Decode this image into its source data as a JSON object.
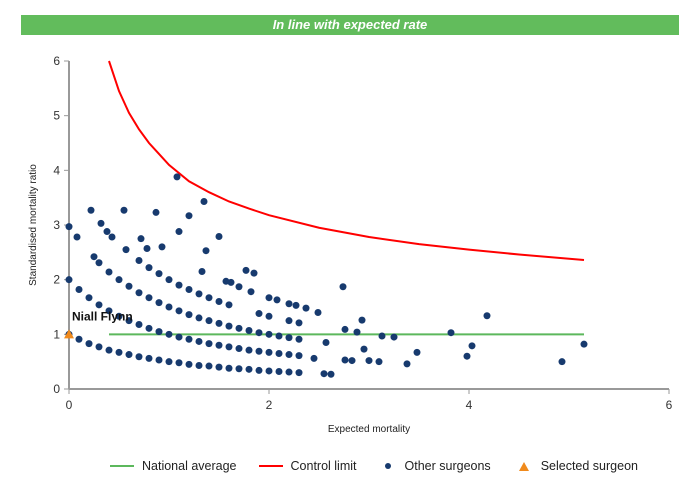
{
  "banner": {
    "text": "In line with expected rate",
    "color": "#62bc5c"
  },
  "chart_data": {
    "type": "scatter",
    "xlabel": "Expected mortality",
    "ylabel": "Standardised mortality ratio",
    "xlim": [
      0,
      6
    ],
    "ylim": [
      0,
      6
    ],
    "xticks": [
      0,
      2,
      4,
      6
    ],
    "yticks": [
      0,
      1,
      2,
      3,
      4,
      5,
      6
    ],
    "grid": false,
    "legend_position": "bottom",
    "national_average": {
      "name": "National average",
      "color": "#5cb85c",
      "y": 1,
      "x_range": [
        0.4,
        5.15
      ]
    },
    "control_limit": {
      "name": "Control limit",
      "color": "#ff0000",
      "x": [
        0.4,
        0.5,
        0.6,
        0.7,
        0.8,
        0.9,
        1.0,
        1.2,
        1.4,
        1.6,
        1.8,
        2.0,
        2.5,
        3.0,
        3.5,
        4.0,
        4.5,
        5.15
      ],
      "y": [
        6.0,
        5.45,
        5.05,
        4.75,
        4.5,
        4.3,
        4.1,
        3.8,
        3.6,
        3.43,
        3.3,
        3.18,
        2.95,
        2.78,
        2.65,
        2.55,
        2.46,
        2.36
      ]
    },
    "other_surgeons": {
      "name": "Other surgeons",
      "color": "#173a6e",
      "points": [
        [
          0,
          1.0
        ],
        [
          0.1,
          0.91
        ],
        [
          0.2,
          0.83
        ],
        [
          0.3,
          0.77
        ],
        [
          0.4,
          0.71
        ],
        [
          0.5,
          0.67
        ],
        [
          0.6,
          0.63
        ],
        [
          0.7,
          0.59
        ],
        [
          0.8,
          0.56
        ],
        [
          0.9,
          0.53
        ],
        [
          1.0,
          0.5
        ],
        [
          1.1,
          0.48
        ],
        [
          1.2,
          0.45
        ],
        [
          1.3,
          0.43
        ],
        [
          1.4,
          0.42
        ],
        [
          1.5,
          0.4
        ],
        [
          1.6,
          0.38
        ],
        [
          1.7,
          0.37
        ],
        [
          1.8,
          0.36
        ],
        [
          1.9,
          0.34
        ],
        [
          2.0,
          0.33
        ],
        [
          2.1,
          0.32
        ],
        [
          2.2,
          0.31
        ],
        [
          2.3,
          0.3
        ],
        [
          0,
          2.0
        ],
        [
          0.1,
          1.82
        ],
        [
          0.2,
          1.67
        ],
        [
          0.3,
          1.54
        ],
        [
          0.4,
          1.43
        ],
        [
          0.5,
          1.33
        ],
        [
          0.6,
          1.25
        ],
        [
          0.7,
          1.18
        ],
        [
          0.8,
          1.11
        ],
        [
          0.9,
          1.05
        ],
        [
          1.0,
          1.0
        ],
        [
          1.1,
          0.95
        ],
        [
          1.2,
          0.91
        ],
        [
          1.3,
          0.87
        ],
        [
          1.4,
          0.83
        ],
        [
          1.5,
          0.8
        ],
        [
          1.6,
          0.77
        ],
        [
          1.7,
          0.74
        ],
        [
          1.8,
          0.71
        ],
        [
          1.9,
          0.69
        ],
        [
          2.0,
          0.67
        ],
        [
          2.1,
          0.65
        ],
        [
          2.2,
          0.63
        ],
        [
          2.3,
          0.61
        ],
        [
          0.25,
          2.42
        ],
        [
          0.3,
          2.31
        ],
        [
          0.4,
          2.14
        ],
        [
          0.5,
          2.0
        ],
        [
          0.6,
          1.88
        ],
        [
          0.7,
          1.76
        ],
        [
          0.8,
          1.67
        ],
        [
          0.9,
          1.58
        ],
        [
          1.0,
          1.5
        ],
        [
          1.1,
          1.43
        ],
        [
          1.2,
          1.36
        ],
        [
          1.3,
          1.3
        ],
        [
          1.4,
          1.25
        ],
        [
          1.5,
          1.2
        ],
        [
          1.6,
          1.15
        ],
        [
          1.7,
          1.11
        ],
        [
          1.8,
          1.07
        ],
        [
          1.9,
          1.03
        ],
        [
          2.0,
          1.0
        ],
        [
          2.1,
          0.97
        ],
        [
          2.2,
          0.94
        ],
        [
          2.3,
          0.91
        ],
        [
          0.7,
          2.35
        ],
        [
          0.8,
          2.22
        ],
        [
          0.9,
          2.11
        ],
        [
          1.0,
          2.0
        ],
        [
          1.1,
          1.9
        ],
        [
          1.2,
          1.82
        ],
        [
          1.3,
          1.74
        ],
        [
          1.4,
          1.67
        ],
        [
          1.5,
          1.6
        ],
        [
          1.6,
          1.54
        ],
        [
          1.9,
          1.38
        ],
        [
          2.0,
          1.33
        ],
        [
          2.2,
          1.25
        ],
        [
          2.3,
          1.21
        ],
        [
          0,
          2.97
        ],
        [
          0.08,
          2.78
        ],
        [
          0.22,
          3.27
        ],
        [
          0.32,
          3.03
        ],
        [
          0.38,
          2.88
        ],
        [
          0.43,
          2.78
        ],
        [
          0.55,
          3.27
        ],
        [
          0.57,
          2.55
        ],
        [
          0.72,
          2.75
        ],
        [
          0.78,
          2.57
        ],
        [
          0.87,
          3.23
        ],
        [
          0.93,
          2.6
        ],
        [
          1.08,
          3.88
        ],
        [
          1.1,
          2.88
        ],
        [
          1.2,
          3.17
        ],
        [
          1.33,
          2.15
        ],
        [
          1.35,
          3.43
        ],
        [
          1.37,
          2.53
        ],
        [
          1.5,
          2.79
        ],
        [
          1.57,
          1.97
        ],
        [
          1.62,
          1.95
        ],
        [
          1.7,
          1.87
        ],
        [
          1.77,
          2.17
        ],
        [
          1.82,
          1.78
        ],
        [
          1.85,
          2.12
        ],
        [
          2.0,
          1.67
        ],
        [
          2.08,
          1.63
        ],
        [
          2.2,
          1.56
        ],
        [
          2.27,
          1.53
        ],
        [
          2.37,
          1.48
        ],
        [
          2.49,
          1.4
        ],
        [
          2.74,
          1.87
        ],
        [
          2.76,
          1.09
        ],
        [
          2.88,
          1.04
        ],
        [
          2.93,
          1.26
        ],
        [
          3.13,
          0.97
        ],
        [
          3.25,
          0.95
        ],
        [
          3.82,
          1.03
        ],
        [
          4.18,
          1.34
        ],
        [
          2.57,
          0.85
        ],
        [
          2.45,
          0.56
        ],
        [
          2.55,
          0.28
        ],
        [
          2.62,
          0.27
        ],
        [
          2.76,
          0.53
        ],
        [
          2.83,
          0.52
        ],
        [
          3.0,
          0.52
        ],
        [
          3.1,
          0.5
        ],
        [
          2.95,
          0.73
        ],
        [
          3.38,
          0.46
        ],
        [
          3.48,
          0.67
        ],
        [
          3.98,
          0.6
        ],
        [
          4.03,
          0.79
        ],
        [
          4.93,
          0.5
        ],
        [
          5.15,
          0.82
        ]
      ]
    },
    "selected_surgeon": {
      "name": "Selected surgeon",
      "label": "Niall Flynn",
      "color": "#f08a1c",
      "x": 0,
      "y": 1.0
    }
  }
}
